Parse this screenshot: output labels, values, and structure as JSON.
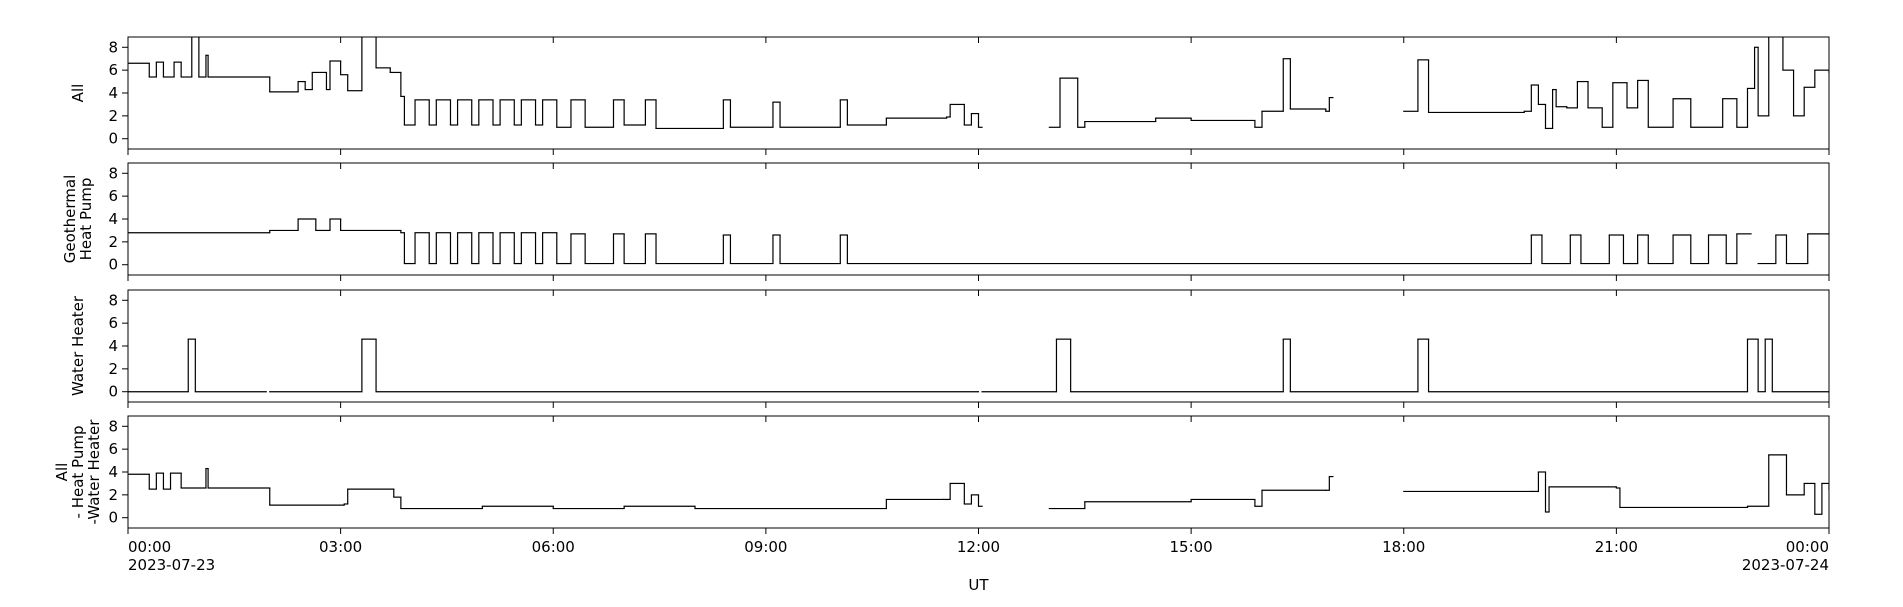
{
  "chart_data": [
    {
      "type": "line",
      "ylabel": [
        "All"
      ],
      "color": "#000000",
      "x": [
        0,
        0.3,
        0.4,
        0.5,
        0.65,
        0.75,
        0.9,
        1.0,
        1.1,
        1.13,
        2.0,
        2.4,
        2.5,
        2.6,
        2.8,
        2.85,
        3.0,
        3.1,
        3.3,
        3.5,
        3.7,
        3.85,
        3.9,
        4.05,
        4.25,
        4.35,
        4.55,
        4.65,
        4.85,
        4.95,
        5.15,
        5.25,
        5.45,
        5.55,
        5.75,
        5.85,
        6.05,
        6.25,
        6.45,
        6.85,
        7.0,
        7.3,
        7.45,
        8.4,
        8.5,
        9.1,
        9.2,
        10.05,
        10.15,
        10.7,
        11.55,
        11.6,
        11.8,
        11.9,
        12.0,
        12.05,
        13.0,
        13.15,
        13.4,
        13.5,
        14.5,
        15.0,
        15.9,
        16.0,
        16.3,
        16.4,
        16.9,
        16.95,
        17.0,
        18.0,
        18.2,
        18.35,
        19.7,
        19.8,
        19.9,
        20.0,
        20.1,
        20.15,
        20.3,
        20.45,
        20.6,
        20.8,
        20.95,
        21.15,
        21.3,
        21.45,
        21.8,
        22.05,
        22.5,
        22.7,
        22.85,
        22.95,
        23.0,
        23.15,
        23.35,
        23.5,
        23.65,
        23.8,
        24
      ],
      "values": [
        6.6,
        5.4,
        6.7,
        5.4,
        6.7,
        5.4,
        9,
        5.4,
        7.3,
        5.4,
        4.1,
        5.0,
        4.3,
        5.8,
        4.3,
        6.8,
        5.6,
        4.2,
        9,
        6.2,
        5.8,
        3.7,
        1.2,
        3.4,
        1.2,
        3.4,
        1.2,
        3.4,
        1.2,
        3.4,
        1.2,
        3.4,
        1.2,
        3.4,
        1.2,
        3.4,
        1.0,
        3.4,
        1.0,
        3.4,
        1.2,
        3.4,
        0.9,
        3.4,
        1.0,
        3.2,
        1.0,
        3.4,
        1.2,
        1.8,
        1.9,
        3.0,
        1.2,
        2.2,
        1.0,
        null,
        1.0,
        5.3,
        1.0,
        1.5,
        1.8,
        1.6,
        1.0,
        2.4,
        7.0,
        2.6,
        2.4,
        3.6,
        null,
        2.4,
        6.9,
        2.3,
        2.4,
        4.7,
        3.0,
        0.9,
        4.3,
        2.8,
        2.7,
        5.0,
        2.7,
        1.0,
        4.9,
        2.7,
        5.1,
        1.0,
        3.5,
        1.0,
        3.5,
        1.0,
        4.4,
        8.0,
        2.0,
        9,
        6.0,
        2.0,
        4.5,
        6.0,
        5.8
      ],
      "xlim": [
        0,
        24
      ],
      "xticks": [
        0,
        3,
        6,
        9,
        12,
        15,
        18,
        21,
        24
      ],
      "ylim": [
        -0.9,
        8.9
      ],
      "yticks": [
        0,
        2,
        4,
        6,
        8
      ]
    },
    {
      "type": "line",
      "ylabel": [
        "Geothermal",
        "Heat Pump"
      ],
      "color": "#000000",
      "x": [
        0,
        2.0,
        2.4,
        2.65,
        2.85,
        3.0,
        3.85,
        3.9,
        4.05,
        4.25,
        4.35,
        4.55,
        4.65,
        4.85,
        4.95,
        5.15,
        5.25,
        5.45,
        5.55,
        5.75,
        5.85,
        6.05,
        6.25,
        6.45,
        6.85,
        7.0,
        7.3,
        7.45,
        8.4,
        8.5,
        9.1,
        9.2,
        10.05,
        10.15,
        19.8,
        19.95,
        20.35,
        20.5,
        20.9,
        21.1,
        21.3,
        21.45,
        21.8,
        22.05,
        22.3,
        22.55,
        22.7,
        22.9,
        23.0,
        23.25,
        23.4,
        23.7,
        24
      ],
      "values": [
        2.8,
        3.0,
        4.0,
        3.0,
        4.0,
        3.0,
        2.8,
        0.1,
        2.8,
        0.1,
        2.8,
        0.1,
        2.8,
        0.1,
        2.8,
        0.1,
        2.8,
        0.1,
        2.8,
        0.1,
        2.8,
        0.1,
        2.7,
        0.1,
        2.7,
        0.1,
        2.7,
        0.1,
        2.6,
        0.1,
        2.6,
        0.1,
        2.6,
        0.1,
        2.6,
        0.1,
        2.6,
        0.1,
        2.6,
        0.1,
        2.6,
        0.1,
        2.6,
        0.1,
        2.6,
        0.1,
        2.7,
        null,
        0.1,
        2.6,
        0.1,
        2.7,
        2.7
      ],
      "xlim": [
        0,
        24
      ],
      "xticks": [
        0,
        3,
        6,
        9,
        12,
        15,
        18,
        21,
        24
      ],
      "ylim": [
        -0.9,
        8.9
      ],
      "yticks": [
        0,
        2,
        4,
        6,
        8
      ]
    },
    {
      "type": "line",
      "ylabel": [
        "Water Heater"
      ],
      "color": "#000000",
      "x": [
        0,
        0.85,
        0.95,
        1.95,
        2.0,
        3.3,
        3.5,
        12.0,
        12.05,
        13.1,
        13.3,
        16.3,
        16.4,
        18.2,
        18.35,
        22.85,
        23.0,
        23.1,
        23.2,
        24
      ],
      "values": [
        0,
        4.6,
        0,
        null,
        0,
        4.6,
        0,
        null,
        0,
        4.6,
        0,
        4.6,
        0,
        4.6,
        0,
        4.6,
        0,
        4.6,
        0,
        0
      ],
      "xlim": [
        0,
        24
      ],
      "xticks": [
        0,
        3,
        6,
        9,
        12,
        15,
        18,
        21,
        24
      ],
      "ylim": [
        -0.9,
        8.9
      ],
      "yticks": [
        0,
        2,
        4,
        6,
        8
      ]
    },
    {
      "type": "line",
      "ylabel": [
        "All",
        "- Heat Pump",
        "-Water Heater"
      ],
      "color": "#000000",
      "x": [
        0,
        0.3,
        0.4,
        0.5,
        0.6,
        0.75,
        1.1,
        1.13,
        2.0,
        3.05,
        3.1,
        3.75,
        3.85,
        5,
        6,
        7,
        8,
        10.7,
        11.5,
        11.6,
        11.8,
        11.9,
        12.0,
        12.05,
        13.0,
        13.5,
        15,
        15.9,
        16.0,
        16.9,
        16.95,
        17.0,
        18.0,
        19.8,
        19.9,
        20.0,
        20.05,
        21.0,
        21.05,
        22.85,
        23.15,
        23.4,
        23.65,
        23.8,
        23.9,
        24
      ],
      "values": [
        3.8,
        2.5,
        3.9,
        2.5,
        3.9,
        2.6,
        4.3,
        2.6,
        1.1,
        1.2,
        2.5,
        1.8,
        0.8,
        1.0,
        0.8,
        1.0,
        0.8,
        1.6,
        1.6,
        3.0,
        1.2,
        2.0,
        1.0,
        null,
        0.8,
        1.4,
        1.6,
        1.0,
        2.4,
        2.4,
        3.6,
        null,
        2.3,
        2.3,
        4.0,
        0.5,
        2.7,
        2.6,
        0.9,
        1.0,
        5.5,
        2.0,
        3.0,
        0.3,
        3.0,
        2.5
      ],
      "xlim": [
        0,
        24
      ],
      "xticks": [
        {
          "value": 0,
          "label": "00:00"
        },
        {
          "value": 3,
          "label": "03:00"
        },
        {
          "value": 6,
          "label": "06:00"
        },
        {
          "value": 9,
          "label": "09:00"
        },
        {
          "value": 12,
          "label": "12:00"
        },
        {
          "value": 15,
          "label": "15:00"
        },
        {
          "value": 18,
          "label": "18:00"
        },
        {
          "value": 21,
          "label": "21:00"
        },
        {
          "value": 24,
          "label": "00:00"
        }
      ],
      "start_date": "2023-07-23",
      "end_date": "2023-07-24",
      "xlabel": "UT",
      "ylim": [
        -0.9,
        8.9
      ],
      "yticks": [
        0,
        2,
        4,
        6,
        8
      ]
    }
  ]
}
